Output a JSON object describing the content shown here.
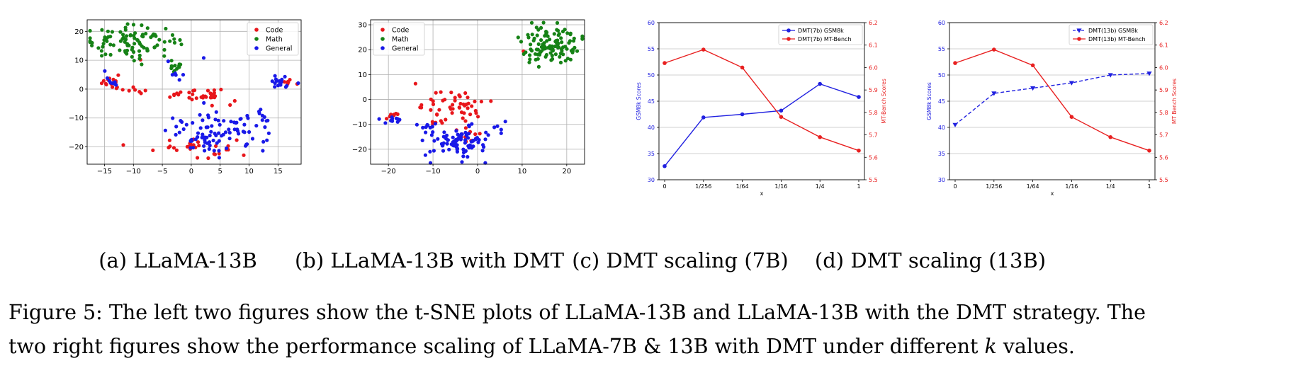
{
  "figure": {
    "caption_line1": "Figure 5: The left two figures show the t-SNE plots of LLaMA-13B and LLaMA-13B with the DMT strategy. The",
    "caption_line2_prefix": "two right figures show the performance scaling of LLaMA-7B & 13B with DMT under different ",
    "caption_k": "k",
    "caption_line2_suffix": " values.",
    "subcaptions": [
      "(a) LLaMA-13B",
      "(b) LLaMA-13B with DMT",
      "(c) DMT scaling (7B)",
      "(d) DMT scaling (13B)"
    ]
  },
  "colors": {
    "code": "#e8161b",
    "math": "#168216",
    "general": "#1919e8",
    "gsm": "#2020e0",
    "mt": "#e82020"
  },
  "chart_data": [
    {
      "type": "scatter",
      "title": "",
      "xlim": [
        -18,
        19
      ],
      "ylim": [
        -26,
        24
      ],
      "xticks": [
        -15,
        -10,
        -5,
        0,
        5,
        10,
        15
      ],
      "yticks": [
        -20,
        -10,
        0,
        10,
        20
      ],
      "grid": true,
      "legend_position": "top-right",
      "series": [
        {
          "name": "Code",
          "color": "#e8161b",
          "clusters": [
            {
              "cx": -14,
              "cy": 2.5,
              "sx": 0.7,
              "sy": 1.5,
              "n": 14
            },
            {
              "cx": -9.8,
              "cy": 0.2,
              "sx": 1.2,
              "sy": 0.8,
              "n": 8
            },
            {
              "cx": -2,
              "cy": -2,
              "sx": 1.5,
              "sy": 1.2,
              "n": 10
            },
            {
              "cx": 3.5,
              "cy": -2,
              "sx": 2.2,
              "sy": 1.3,
              "n": 22
            },
            {
              "cx": 0.5,
              "cy": -20,
              "sx": 3.5,
              "sy": 1.8,
              "n": 30
            },
            {
              "cx": 16.5,
              "cy": 2.3,
              "sx": 0.7,
              "sy": 0.6,
              "n": 6
            },
            {
              "cx": -9,
              "cy": 10.1,
              "sx": 0.2,
              "sy": 0.2,
              "n": 1
            }
          ]
        },
        {
          "name": "Math",
          "color": "#168216",
          "clusters": [
            {
              "cx": -10.5,
              "cy": 16.5,
              "sx": 4.2,
              "sy": 2.6,
              "n": 95
            },
            {
              "cx": -2.5,
              "cy": 7.5,
              "sx": 0.8,
              "sy": 1.3,
              "n": 12
            }
          ]
        },
        {
          "name": "General",
          "color": "#1919e8",
          "clusters": [
            {
              "cx": 4.5,
              "cy": -15.5,
              "sx": 4.2,
              "sy": 3.6,
              "n": 90
            },
            {
              "cx": 16,
              "cy": 2.6,
              "sx": 1.3,
              "sy": 1.2,
              "n": 16
            },
            {
              "cx": -13.8,
              "cy": 3,
              "sx": 0.6,
              "sy": 1.2,
              "n": 8
            },
            {
              "cx": -3,
              "cy": 6.5,
              "sx": 0.8,
              "sy": 1.6,
              "n": 6
            },
            {
              "cx": 12.5,
              "cy": -9.5,
              "sx": 0.7,
              "sy": 1.5,
              "n": 8
            },
            {
              "cx": 2.5,
              "cy": 10.5,
              "sx": 0.2,
              "sy": 0.2,
              "n": 1
            }
          ]
        }
      ]
    },
    {
      "type": "scatter",
      "title": "",
      "xlim": [
        -24,
        24
      ],
      "ylim": [
        -26,
        32
      ],
      "xticks": [
        -20,
        -10,
        0,
        10,
        20
      ],
      "yticks": [
        -20,
        -10,
        0,
        10,
        20,
        30
      ],
      "grid": true,
      "legend_position": "top-left",
      "series": [
        {
          "name": "Code",
          "color": "#e8161b",
          "clusters": [
            {
              "cx": -5.5,
              "cy": -4,
              "sx": 3.8,
              "sy": 3.6,
              "n": 55
            },
            {
              "cx": -18.2,
              "cy": -7,
              "sx": 0.8,
              "sy": 0.9,
              "n": 8
            },
            {
              "cx": -2.5,
              "cy": -15,
              "sx": 1.5,
              "sy": 1.5,
              "n": 10
            },
            {
              "cx": 10.5,
              "cy": 19.5,
              "sx": 0.2,
              "sy": 0.2,
              "n": 1
            }
          ]
        },
        {
          "name": "Math",
          "color": "#168216",
          "clusters": [
            {
              "cx": 16.5,
              "cy": 22,
              "sx": 3.2,
              "sy": 3.8,
              "n": 110
            }
          ]
        },
        {
          "name": "General",
          "color": "#1919e8",
          "clusters": [
            {
              "cx": -4,
              "cy": -17,
              "sx": 3.6,
              "sy": 3.6,
              "n": 90
            },
            {
              "cx": -19.5,
              "cy": -8.2,
              "sx": 1.2,
              "sy": 0.6,
              "n": 10
            },
            {
              "cx": -11,
              "cy": -10.5,
              "sx": 1.3,
              "sy": 1.2,
              "n": 8
            },
            {
              "cx": 4.5,
              "cy": -11,
              "sx": 1.4,
              "sy": 1.5,
              "n": 5
            }
          ]
        }
      ]
    },
    {
      "type": "line",
      "title": "",
      "xlabel": "x",
      "ylabel": "GSM8k Scores",
      "y2label": "MT-Bench Scores",
      "categories": [
        "0",
        "1/256",
        "1/64",
        "1/16",
        "1/4",
        "1"
      ],
      "ylim": [
        30,
        60
      ],
      "y2lim": [
        5.5,
        6.2
      ],
      "yticks": [
        30,
        35,
        40,
        45,
        50,
        55,
        60
      ],
      "y2ticks": [
        5.5,
        5.6,
        5.7,
        5.8,
        5.9,
        6.0,
        6.1,
        6.2
      ],
      "grid": true,
      "legend_position": "top-right",
      "series": [
        {
          "name": "DMT(7b) GSM8k",
          "axis": "left",
          "color": "#2020e0",
          "marker": "circle",
          "dashed": false,
          "values": [
            32.6,
            41.9,
            42.5,
            43.2,
            48.3,
            45.8
          ]
        },
        {
          "name": "DMT(7b) MT-Bench",
          "axis": "right",
          "color": "#e82020",
          "marker": "circle",
          "dashed": false,
          "values": [
            6.02,
            6.08,
            6.0,
            5.78,
            5.69,
            5.63
          ]
        }
      ]
    },
    {
      "type": "line",
      "title": "",
      "xlabel": "x",
      "ylabel": "GSM8k Scores",
      "y2label": "MT Bench Scores",
      "categories": [
        "0",
        "1/256",
        "1/64",
        "1/16",
        "1/4",
        "1"
      ],
      "ylim": [
        30,
        60
      ],
      "y2lim": [
        5.5,
        6.2
      ],
      "yticks": [
        30,
        35,
        40,
        45,
        50,
        55,
        60
      ],
      "y2ticks": [
        5.5,
        5.6,
        5.7,
        5.8,
        5.9,
        6.0,
        6.1,
        6.2
      ],
      "grid": true,
      "legend_position": "top-right",
      "series": [
        {
          "name": "DMT(13b) GSM8k",
          "axis": "left",
          "color": "#2020e0",
          "marker": "triangle-down",
          "dashed": true,
          "values": [
            40.5,
            46.5,
            47.5,
            48.5,
            50.0,
            50.3
          ]
        },
        {
          "name": "DMT(13b) MT-Bench",
          "axis": "right",
          "color": "#e82020",
          "marker": "circle",
          "dashed": false,
          "values": [
            6.02,
            6.08,
            6.01,
            5.78,
            5.69,
            5.63
          ]
        }
      ]
    }
  ]
}
